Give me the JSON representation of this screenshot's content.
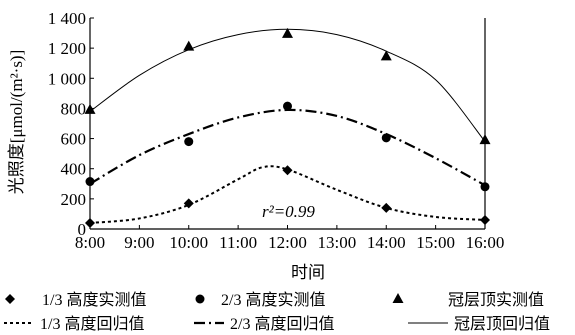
{
  "chart_data": {
    "type": "scatter",
    "xlabel": "时间",
    "ylabel": "光照度[μmol/(m²·s)]",
    "x_ticks": [
      "8:00",
      "9:00",
      "10:00",
      "11:00",
      "12:00",
      "13:00",
      "14:00",
      "15:00",
      "16:00"
    ],
    "y_ticks": [
      "0",
      "200",
      "400",
      "600",
      "800",
      "1 000",
      "1 200",
      "1 400"
    ],
    "xlim": [
      8,
      16
    ],
    "ylim": [
      0,
      1400
    ],
    "grid": false,
    "legend_position": "bottom",
    "annotation": "r²=0.99",
    "series": [
      {
        "name": "1/3 高度实测值",
        "marker": "diamond",
        "points": [
          [
            8,
            40
          ],
          [
            10,
            170
          ],
          [
            12,
            390
          ],
          [
            14,
            140
          ],
          [
            16,
            60
          ]
        ]
      },
      {
        "name": "2/3 高度实测值",
        "marker": "circle",
        "points": [
          [
            8,
            315
          ],
          [
            10,
            580
          ],
          [
            12,
            815
          ],
          [
            14,
            605
          ],
          [
            16,
            280
          ]
        ]
      },
      {
        "name": "冠层顶实测值",
        "marker": "triangle",
        "points": [
          [
            8,
            790
          ],
          [
            10,
            1210
          ],
          [
            12,
            1295
          ],
          [
            14,
            1145
          ],
          [
            16,
            590
          ]
        ]
      },
      {
        "name": "1/3 高度回归值",
        "line": "dotted",
        "points": [
          [
            8,
            40
          ],
          [
            9,
            70
          ],
          [
            10,
            160
          ],
          [
            11,
            330
          ],
          [
            11.5,
            410
          ],
          [
            12,
            395
          ],
          [
            13,
            260
          ],
          [
            14,
            140
          ],
          [
            15,
            80
          ],
          [
            16,
            60
          ]
        ]
      },
      {
        "name": "2/3 高度回归值",
        "line": "dash-dot",
        "points": [
          [
            8,
            300
          ],
          [
            9,
            490
          ],
          [
            10,
            630
          ],
          [
            11,
            740
          ],
          [
            12,
            790
          ],
          [
            13,
            750
          ],
          [
            14,
            630
          ],
          [
            15,
            470
          ],
          [
            16,
            290
          ]
        ]
      },
      {
        "name": "冠层顶回归值",
        "line": "solid",
        "points": [
          [
            8,
            780
          ],
          [
            9,
            1020
          ],
          [
            10,
            1190
          ],
          [
            11,
            1290
          ],
          [
            12,
            1325
          ],
          [
            13,
            1290
          ],
          [
            14,
            1180
          ],
          [
            15,
            990
          ],
          [
            16,
            580
          ]
        ]
      }
    ]
  }
}
